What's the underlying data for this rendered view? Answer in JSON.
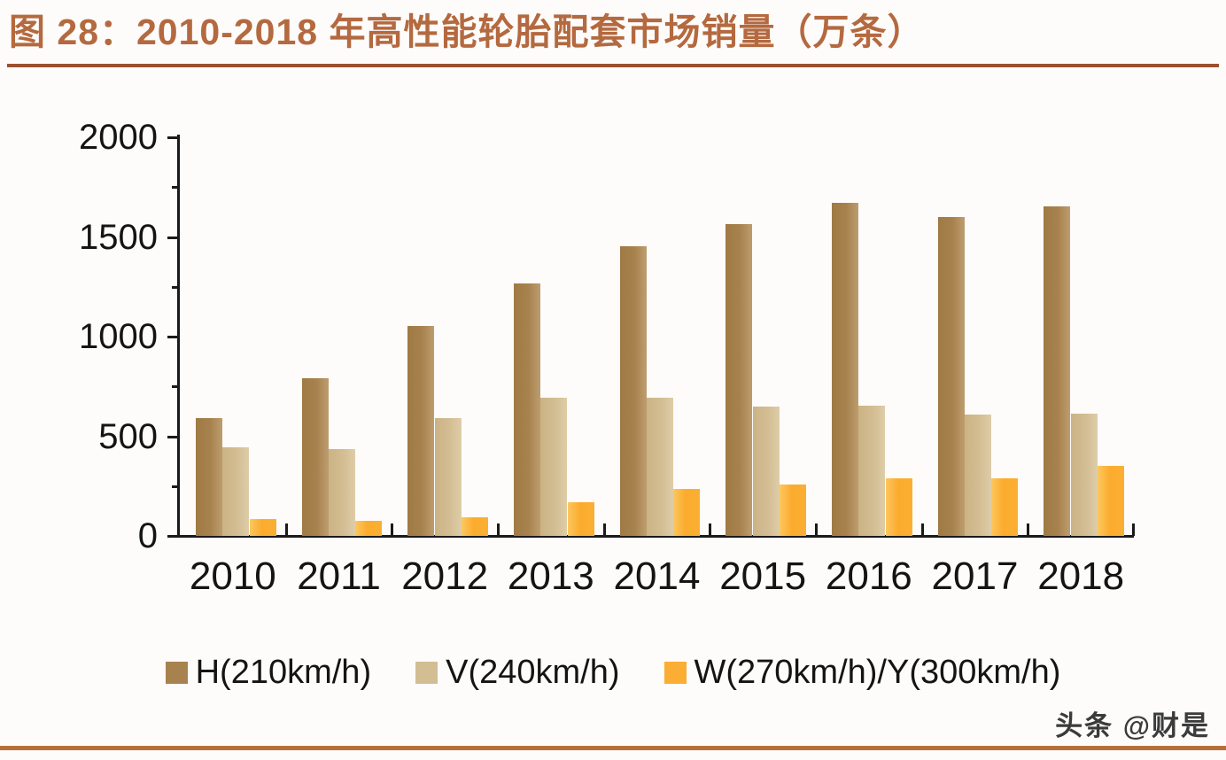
{
  "figure": {
    "title": "图 28：2010-2018 年高性能轮胎配套市场销量（万条）",
    "watermark": "头条 @财是"
  },
  "colors": {
    "title": "#B4693F",
    "rule_top": "#9B502F",
    "rule_bottom": "#B5703A",
    "axis": "#1A1A1A",
    "series_h": "#A8824E",
    "series_v": "#D3BD93",
    "series_w": "#FBAE33"
  },
  "chart_data": {
    "type": "bar",
    "title": "图 28：2010-2018 年高性能轮胎配套市场销量（万条）",
    "xlabel": "",
    "ylabel": "万条",
    "categories": [
      "2010",
      "2011",
      "2012",
      "2013",
      "2014",
      "2015",
      "2016",
      "2017",
      "2018"
    ],
    "series": [
      {
        "key": "h210",
        "name": "H(210km/h)",
        "color": "#A8824E",
        "values": [
          590,
          790,
          1055,
          1265,
          1455,
          1565,
          1670,
          1600,
          1655
        ]
      },
      {
        "key": "v240",
        "name": "V(240km/h)",
        "color": "#D3BD93",
        "values": [
          445,
          435,
          590,
          695,
          695,
          650,
          655,
          610,
          615
        ]
      },
      {
        "key": "w270y300",
        "name": "W(270km/h)/Y(300km/h)",
        "color": "#FBAE33",
        "values": [
          85,
          75,
          95,
          170,
          235,
          260,
          290,
          290,
          350
        ]
      }
    ],
    "ylim": [
      0,
      2000
    ],
    "yticks": [
      0,
      500,
      1000,
      1500,
      2000
    ],
    "minor_ytick_step": 250,
    "grid": false,
    "legend_position": "bottom"
  }
}
